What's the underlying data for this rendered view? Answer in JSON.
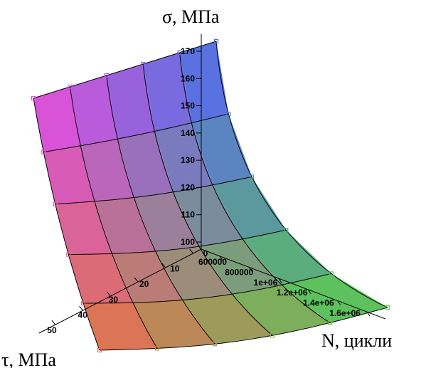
{
  "chart_data": {
    "type": "surface3d",
    "z_label": "σ, МПа",
    "x_label": "N, цикли",
    "y_label": "τ, МПа",
    "z_ticks": [
      "100",
      "110",
      "120",
      "130",
      "140",
      "150",
      "160",
      "170"
    ],
    "x_ticks": [
      "600000",
      "800000",
      "1e+06",
      "1.2e+06",
      "1.4e+06",
      "1.6e+06"
    ],
    "y_ticks": [
      "0",
      "10",
      "20",
      "30",
      "40",
      "50"
    ],
    "colors": {
      "magenta": "#e84ce8",
      "blue": "#4a6af2",
      "green": "#4dd64d",
      "orange": "#ec6e45",
      "grid": "#000000"
    }
  }
}
